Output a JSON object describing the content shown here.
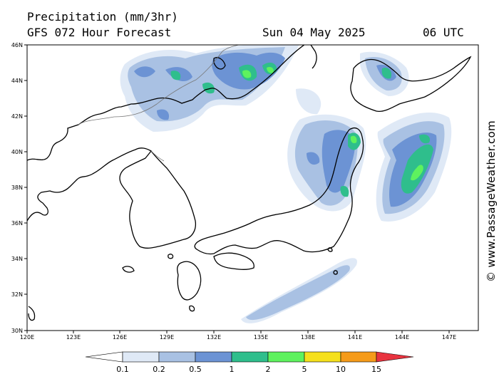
{
  "header": {
    "title": "Precipitation (mm/3hr)",
    "subtitle": "GFS 072 Hour Forecast",
    "date": "Sun 04 May 2025",
    "time": "06 UTC"
  },
  "watermark": "© www.PassageWeather.com",
  "axes": {
    "lat_labels": [
      "46N",
      "44N",
      "42N",
      "40N",
      "38N",
      "36N",
      "34N",
      "32N",
      "30N"
    ],
    "lon_labels": [
      "120E",
      "123E",
      "126E",
      "129E",
      "132E",
      "135E",
      "138E",
      "141E",
      "144E",
      "147E"
    ]
  },
  "legend": {
    "values": [
      "0.1",
      "0.2",
      "0.5",
      "1",
      "2",
      "5",
      "10",
      "15"
    ],
    "colors": [
      "#ffffff",
      "#dfe9f6",
      "#a9c1e3",
      "#6c93d4",
      "#2fbe8c",
      "#5ef25e",
      "#f5e01c",
      "#f59b1a",
      "#e8333f"
    ]
  }
}
